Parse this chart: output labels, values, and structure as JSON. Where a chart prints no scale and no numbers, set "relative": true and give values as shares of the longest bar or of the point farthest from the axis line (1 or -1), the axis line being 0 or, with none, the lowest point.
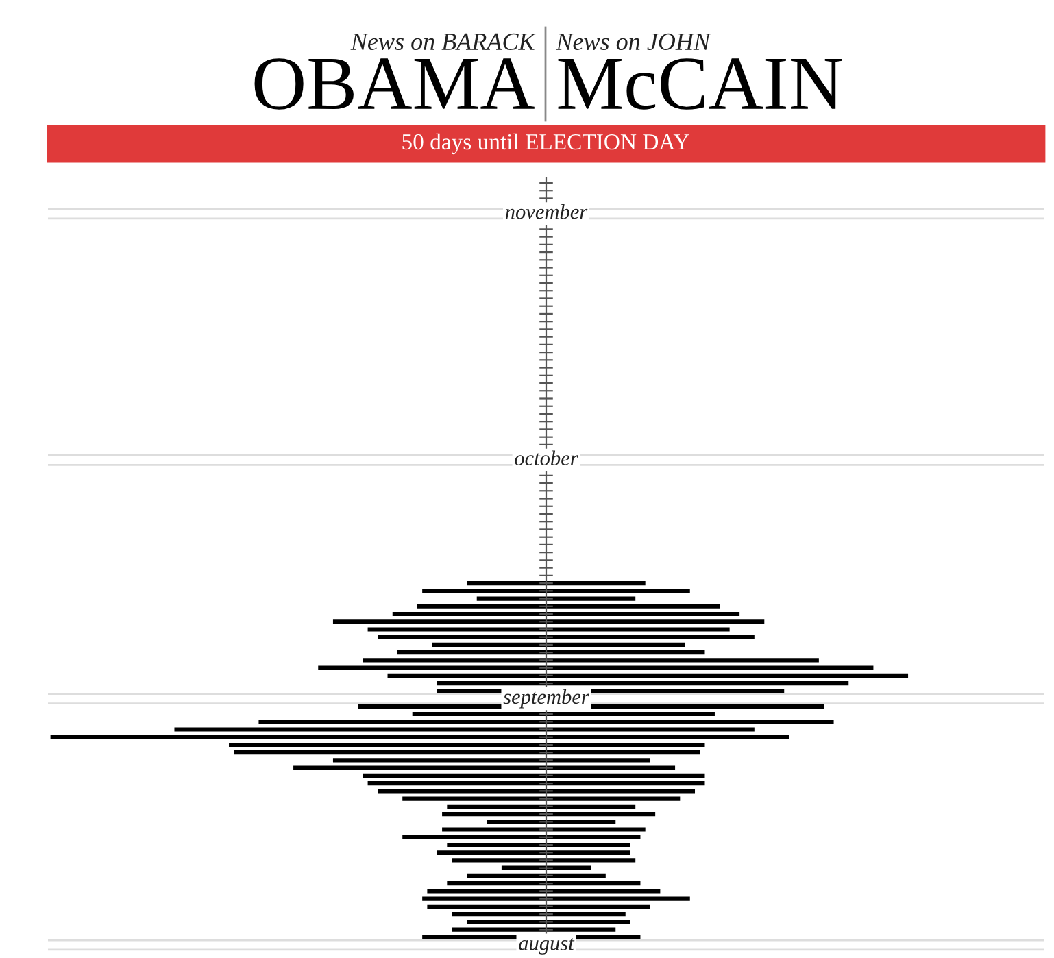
{
  "chart_data": {
    "type": "bar",
    "orientation": "horizontal",
    "relative": true,
    "title": "50 days until ELECTION DAY",
    "annotations": [
      "News on BARACK",
      "OBAMA",
      "News on JOHN",
      "McCAIN"
    ],
    "categories": [
      null,
      null,
      null,
      null,
      "november",
      null,
      null,
      null,
      null,
      null,
      null,
      null,
      null,
      null,
      null,
      null,
      null,
      null,
      null,
      null,
      null,
      null,
      null,
      null,
      null,
      null,
      null,
      null,
      null,
      null,
      null,
      null,
      null,
      null,
      null,
      null,
      "october",
      null,
      null,
      null,
      null,
      null,
      null,
      null,
      null,
      null,
      null,
      null,
      null,
      null,
      null,
      null,
      null,
      null,
      null,
      null,
      null,
      null,
      null,
      null,
      null,
      null,
      null,
      null,
      null,
      null,
      null,
      "september",
      null,
      null,
      null,
      null,
      null,
      null,
      null,
      null,
      null,
      null,
      null,
      null,
      null,
      null,
      null,
      null,
      null,
      null,
      null,
      null,
      null,
      null,
      null,
      null,
      null,
      null,
      null,
      null,
      null,
      null,
      null,
      "august"
    ],
    "series": [
      {
        "color": "#000000",
        "values": [
          null,
          null,
          null,
          null,
          null,
          null,
          null,
          null,
          null,
          null,
          null,
          null,
          null,
          null,
          null,
          null,
          null,
          null,
          null,
          null,
          null,
          null,
          null,
          null,
          null,
          null,
          null,
          null,
          null,
          null,
          null,
          null,
          null,
          null,
          null,
          null,
          null,
          null,
          null,
          null,
          null,
          null,
          null,
          null,
          null,
          null,
          null,
          null,
          null,
          null,
          null,
          null,
          -0.16,
          -0.25,
          -0.14,
          -0.26,
          -0.31,
          -0.43,
          -0.36,
          -0.34,
          -0.23,
          -0.3,
          -0.37,
          -0.46,
          -0.32,
          -0.22,
          -0.22,
          null,
          -0.38,
          -0.27,
          -0.58,
          -0.75,
          -1,
          -0.64,
          -0.63,
          -0.43,
          -0.51,
          -0.37,
          -0.36,
          -0.34,
          -0.29,
          -0.2,
          -0.21,
          -0.12,
          -0.21,
          -0.29,
          -0.2,
          -0.22,
          -0.19,
          -0.09,
          -0.16,
          -0.2,
          -0.24,
          -0.25,
          -0.24,
          -0.19,
          -0.16,
          -0.19,
          -0.25,
          null
        ]
      },
      {
        "color": "#000000",
        "values": [
          null,
          null,
          null,
          null,
          null,
          null,
          null,
          null,
          null,
          null,
          null,
          null,
          null,
          null,
          null,
          null,
          null,
          null,
          null,
          null,
          null,
          null,
          null,
          null,
          null,
          null,
          null,
          null,
          null,
          null,
          null,
          null,
          null,
          null,
          null,
          null,
          null,
          null,
          null,
          null,
          null,
          null,
          null,
          null,
          null,
          null,
          null,
          null,
          null,
          null,
          null,
          null,
          0.2,
          0.29,
          0.18,
          0.35,
          0.39,
          0.44,
          0.37,
          0.42,
          0.28,
          0.32,
          0.55,
          0.66,
          0.73,
          0.61,
          0.48,
          null,
          0.56,
          0.34,
          0.58,
          0.42,
          0.49,
          0.32,
          0.31,
          0.21,
          0.26,
          0.32,
          0.32,
          0.3,
          0.27,
          0.18,
          0.22,
          0.14,
          0.2,
          0.19,
          0.17,
          0.17,
          0.18,
          0.09,
          0.12,
          0.19,
          0.23,
          0.29,
          0.21,
          0.16,
          0.17,
          0.14,
          0.19,
          null
        ]
      }
    ],
    "legend": false
  }
}
